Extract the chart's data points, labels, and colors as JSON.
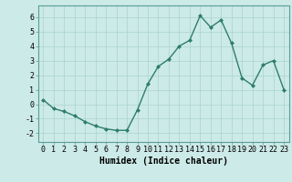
{
  "title": "",
  "xlabel": "Humidex (Indice chaleur)",
  "ylabel": "",
  "x": [
    0,
    1,
    2,
    3,
    4,
    5,
    6,
    7,
    8,
    9,
    10,
    11,
    12,
    13,
    14,
    15,
    16,
    17,
    18,
    19,
    20,
    21,
    22,
    23
  ],
  "y": [
    0.3,
    -0.3,
    -0.5,
    -0.8,
    -1.2,
    -1.5,
    -1.7,
    -1.8,
    -1.8,
    -0.4,
    1.4,
    2.6,
    3.1,
    4.0,
    4.4,
    6.1,
    5.3,
    5.8,
    4.2,
    1.8,
    1.3,
    2.7,
    3.0,
    1.0
  ],
  "line_color": "#2e7d6e",
  "marker": "D",
  "marker_size": 2.0,
  "line_width": 1.0,
  "bg_color": "#cceae7",
  "grid_color": "#aad4d0",
  "tick_label_fontsize": 6,
  "xlabel_fontsize": 7,
  "xlim": [
    -0.5,
    23.5
  ],
  "ylim": [
    -2.6,
    6.8
  ],
  "yticks": [
    -2,
    -1,
    0,
    1,
    2,
    3,
    4,
    5,
    6
  ],
  "xticks": [
    0,
    1,
    2,
    3,
    4,
    5,
    6,
    7,
    8,
    9,
    10,
    11,
    12,
    13,
    14,
    15,
    16,
    17,
    18,
    19,
    20,
    21,
    22,
    23
  ]
}
